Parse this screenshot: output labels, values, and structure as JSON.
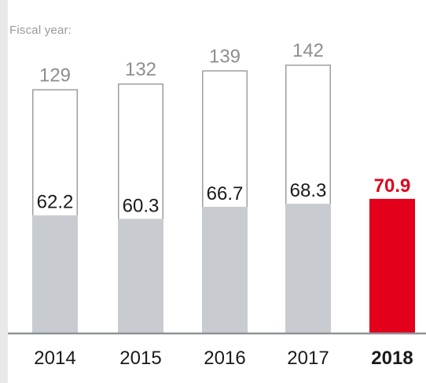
{
  "chart_data": {
    "type": "bar",
    "subtitle": "Fiscal year:",
    "categories": [
      "2014",
      "2015",
      "2016",
      "2017",
      "2018"
    ],
    "series": [
      {
        "values": [
          129,
          132,
          139,
          142,
          null
        ]
      },
      {
        "values": [
          62.2,
          60.3,
          66.7,
          68.3,
          70.9
        ]
      }
    ],
    "value_labels_total": [
      "129",
      "132",
      "139",
      "142",
      ""
    ],
    "value_labels_inner": [
      "62.2",
      "60.3",
      "66.7",
      "68.3",
      "70.9"
    ],
    "highlight_category": "2018",
    "colors": {
      "outline": "#9e9e9e",
      "fill": "#c8ccd0",
      "highlight": "#e2001a",
      "label_dark": "#1a1a1a",
      "label_gray": "#8e8e8e",
      "axis": "#8e9399"
    },
    "grid": false
  }
}
